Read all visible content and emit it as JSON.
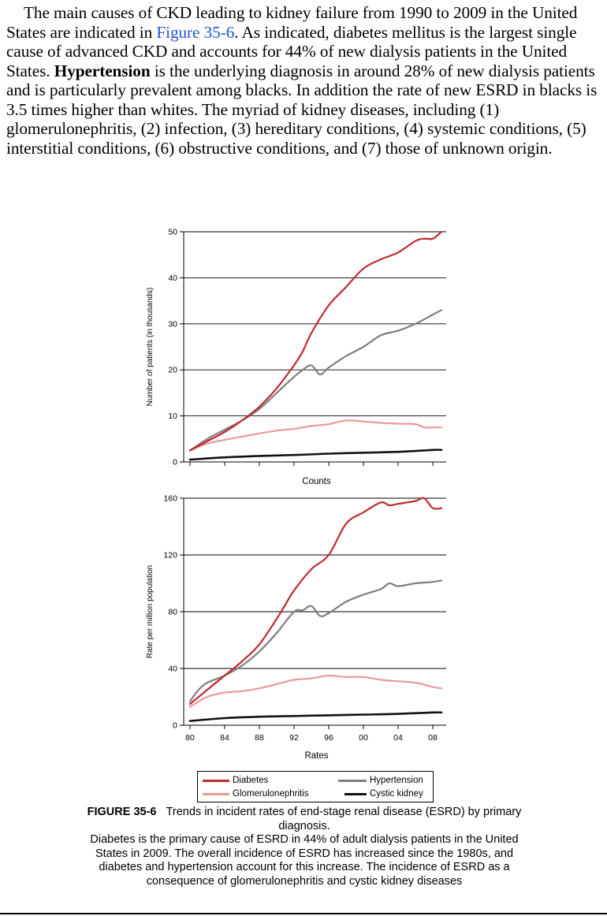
{
  "paragraph": {
    "before_link": "The main causes of CKD leading to kidney failure from 1990 to 2009 in the United States are indicated in ",
    "link": "Figure 35-6",
    "after_link": ". As indicated, diabetes mellitus is the largest single cause of advanced CKD and accounts for 44% of new dialysis patients in the United States. ",
    "bold": "Hypertension",
    "after_bold": " is the underlying diagnosis in around 28% of new dialysis patients and is particularly prevalent among blacks. In addition the rate of new ESRD in blacks is 3.5 times higher than whites. The myriad of kidney diseases, including (1) glomerulonephritis, (2) infection, (3) hereditary conditions, (4) systemic conditions, (5) interstitial conditions, (6) obstructive conditions, and (7) those of unknown origin."
  },
  "colors": {
    "diabetes": "#c0282d",
    "hypertension": "#7f7f7f",
    "glomerulonephritis": "#e89a9a",
    "cystic_kidney": "#111111",
    "link": "#2255cc"
  },
  "chart_data": [
    {
      "type": "line",
      "title": "Counts",
      "ylabel": "Number of patients (in thousands)",
      "ylim": [
        0,
        50
      ],
      "yticks": [
        0,
        10,
        20,
        30,
        40,
        50
      ],
      "xlim": [
        1980,
        2009
      ],
      "grid": true,
      "series": [
        {
          "name": "Diabetes",
          "color_key": "diabetes",
          "x": [
            1980,
            1982,
            1984,
            1986,
            1988,
            1990,
            1992,
            1993,
            1994,
            1996,
            1998,
            2000,
            2002,
            2004,
            2006,
            2007,
            2008,
            2009
          ],
          "y": [
            2.5,
            4.5,
            6.5,
            9,
            12,
            16,
            21,
            24,
            28,
            34,
            38,
            42,
            44,
            45.5,
            48,
            48.5,
            48.5,
            50
          ]
        },
        {
          "name": "Hypertension",
          "color_key": "hypertension",
          "x": [
            1980,
            1982,
            1984,
            1986,
            1988,
            1990,
            1992,
            1993,
            1994,
            1995,
            1996,
            1998,
            2000,
            2002,
            2004,
            2006,
            2008,
            2009
          ],
          "y": [
            2.5,
            5,
            7,
            9,
            11.5,
            15,
            18.5,
            20,
            21,
            19,
            20.5,
            23,
            25,
            27.5,
            28.5,
            30,
            32,
            33
          ]
        },
        {
          "name": "Glomerulonephritis",
          "color_key": "glomerulonephritis",
          "x": [
            1980,
            1982,
            1984,
            1986,
            1988,
            1990,
            1992,
            1994,
            1996,
            1998,
            2000,
            2002,
            2004,
            2006,
            2007,
            2008,
            2009
          ],
          "y": [
            2.5,
            4,
            4.8,
            5.5,
            6.2,
            6.8,
            7.2,
            7.8,
            8.2,
            9,
            8.8,
            8.5,
            8.3,
            8.2,
            7.5,
            7.5,
            7.5
          ]
        },
        {
          "name": "Cystic kidney",
          "color_key": "cystic_kidney",
          "x": [
            1980,
            1984,
            1988,
            1992,
            1996,
            2000,
            2004,
            2008,
            2009
          ],
          "y": [
            0.5,
            1,
            1.3,
            1.5,
            1.8,
            2,
            2.2,
            2.6,
            2.6
          ]
        }
      ]
    },
    {
      "type": "line",
      "title": "Rates",
      "ylabel": "Rate per million population",
      "ylim": [
        0,
        160
      ],
      "yticks": [
        0,
        40,
        80,
        120,
        160
      ],
      "xlim": [
        1980,
        2009
      ],
      "xticks": [
        "80",
        "84",
        "88",
        "92",
        "96",
        "00",
        "04",
        "08"
      ],
      "grid": true,
      "series": [
        {
          "name": "Diabetes",
          "color_key": "diabetes",
          "x": [
            1980,
            1982,
            1984,
            1986,
            1988,
            1990,
            1991,
            1992,
            1994,
            1996,
            1998,
            2000,
            2002,
            2003,
            2004,
            2006,
            2007,
            2008,
            2009
          ],
          "y": [
            15,
            25,
            35,
            45,
            57,
            75,
            85,
            95,
            110,
            120,
            142,
            150,
            157,
            155,
            156,
            158,
            160,
            153,
            153
          ]
        },
        {
          "name": "Hypertension",
          "color_key": "hypertension",
          "x": [
            1980,
            1981,
            1982,
            1984,
            1986,
            1988,
            1990,
            1992,
            1993,
            1994,
            1995,
            1996,
            1998,
            2000,
            2002,
            2003,
            2004,
            2006,
            2008,
            2009
          ],
          "y": [
            17,
            25,
            30,
            35,
            42,
            52,
            65,
            80,
            81,
            84,
            77,
            79,
            87,
            92,
            96,
            100,
            98,
            100,
            101,
            102
          ]
        },
        {
          "name": "Glomerulonephritis",
          "color_key": "glomerulonephritis",
          "x": [
            1980,
            1982,
            1984,
            1986,
            1988,
            1990,
            1992,
            1994,
            1996,
            1998,
            2000,
            2002,
            2004,
            2006,
            2008,
            2009
          ],
          "y": [
            13,
            20,
            23,
            24,
            26,
            29,
            32,
            33,
            35,
            34,
            34,
            32,
            31,
            30,
            27,
            26
          ]
        },
        {
          "name": "Cystic kidney",
          "color_key": "cystic_kidney",
          "x": [
            1980,
            1984,
            1988,
            1992,
            1996,
            2000,
            2004,
            2008,
            2009
          ],
          "y": [
            3,
            5,
            6,
            6.5,
            7,
            7.5,
            8,
            9,
            9
          ]
        }
      ]
    }
  ],
  "legend": {
    "diabetes": "Diabetes",
    "hypertension": "Hypertension",
    "glomerulonephritis": "Glomerulonephritis",
    "cystic_kidney": "Cystic kidney"
  },
  "caption": {
    "label": "FIGURE 35-6",
    "title": "Trends in incident rates of end-stage renal disease (ESRD) by primary diagnosis.",
    "body": "Diabetes is the primary cause of ESRD in 44% of adult dialysis patients in the United States in 2009. The overall incidence of ESRD has increased since the 1980s, and diabetes and hypertension account for this increase. The incidence of ESRD as a consequence of glomerulonephritis and cystic kidney diseases"
  }
}
